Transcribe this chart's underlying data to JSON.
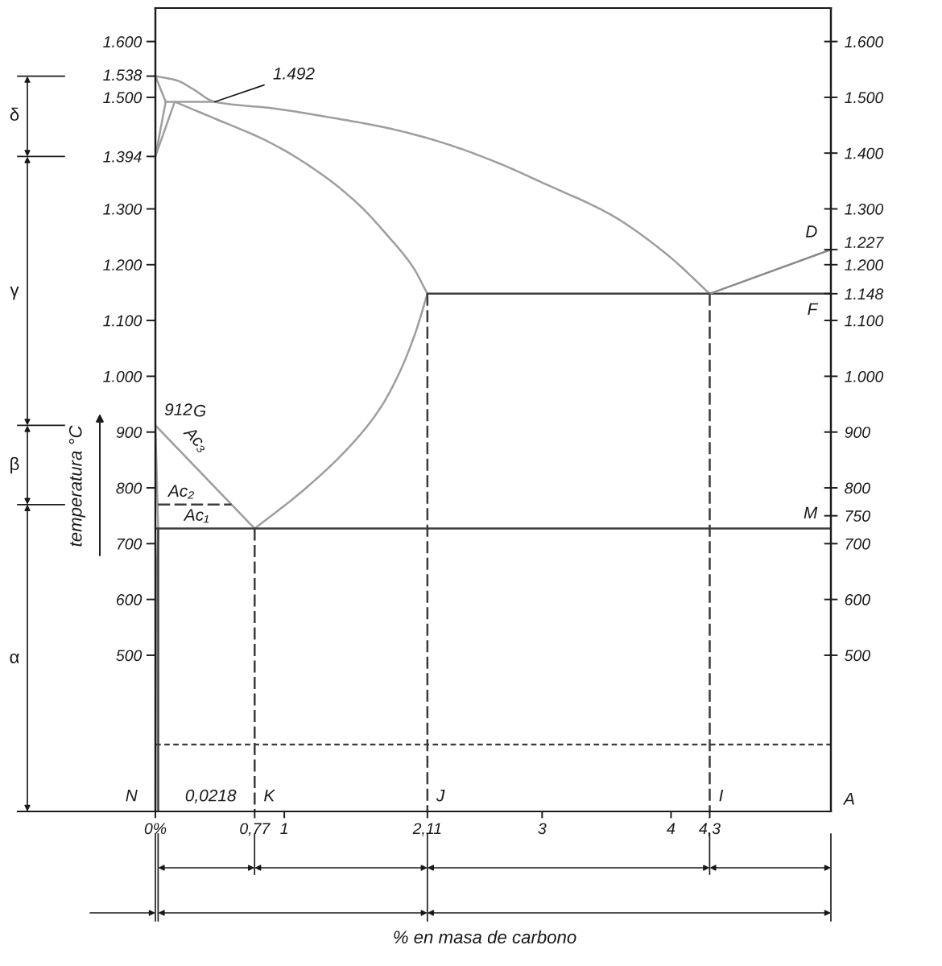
{
  "chart_data": {
    "type": "line",
    "ylabel": "temperatura °C",
    "xlim": [
      0,
      5.24
    ],
    "xticks": [
      {
        "value": 0,
        "label": "0%"
      },
      {
        "value": 0.77,
        "label": "0,77"
      },
      1,
      {
        "value": 2.11,
        "label": "2,11"
      },
      3,
      4,
      {
        "value": 4.3,
        "label": "4,3"
      }
    ],
    "ylim": [
      220,
      1660
    ],
    "yticks": [
      {
        "value": 1600,
        "label": "1.600"
      },
      {
        "value": 1538,
        "label": "1.538"
      },
      {
        "value": 1500,
        "label": "1.500"
      },
      {
        "value": 1394,
        "label": "1.394"
      },
      {
        "value": 1300,
        "label": "1.300"
      },
      {
        "value": 1200,
        "label": "1.200"
      },
      {
        "value": 1100,
        "label": "1.100"
      },
      {
        "value": 1000,
        "label": "1.000"
      },
      900,
      800,
      700,
      600,
      500
    ],
    "y2lim": [
      220,
      1660
    ],
    "y2ticks": [
      {
        "value": 1600,
        "label": "1.600"
      },
      {
        "value": 1500,
        "label": "1.500"
      },
      {
        "value": 1400,
        "label": "1.400"
      },
      {
        "value": 1300,
        "label": "1.300"
      },
      {
        "value": 1227,
        "label": "1.227"
      },
      {
        "value": 1200,
        "label": "1.200"
      },
      {
        "value": 1148,
        "label": "1.148"
      },
      {
        "value": 1100,
        "label": "1.100"
      },
      {
        "value": 1000,
        "label": "1.000"
      },
      900,
      800,
      750,
      700,
      600,
      500
    ],
    "series": [
      {
        "color": "#9e9e9e",
        "x": [
          0,
          0.17,
          0.29,
          0.46,
          0.92,
          1.38,
          1.8,
          2.21,
          2.63,
          3.04,
          3.53,
          3.97,
          4.3
        ],
        "values": [
          1538,
          1530,
          1515,
          1492,
          1480,
          1463,
          1445,
          1420,
          1385,
          1343,
          1290,
          1218,
          1148
        ]
      },
      {
        "color": "#9e9e9e",
        "x": [
          0,
          0.08
        ],
        "values": [
          1538,
          1492
        ]
      },
      {
        "color": "#9e9e9e",
        "x": [
          0.08,
          0
        ],
        "values": [
          1492,
          1394
        ]
      },
      {
        "color": "#9e9e9e",
        "x": [
          0.15,
          0
        ],
        "values": [
          1492,
          1394
        ]
      },
      {
        "color": "#9e9e9e",
        "x": [
          0.08,
          0.46
        ],
        "values": [
          1492,
          1492
        ]
      },
      {
        "color": "#9e9e9e",
        "x": [
          0.15,
          0.46,
          0.88,
          1.29,
          1.59,
          1.79,
          2.0,
          2.11
        ],
        "values": [
          1492,
          1462,
          1420,
          1362,
          1305,
          1255,
          1195,
          1148
        ]
      },
      {
        "color": "#9e9e9e",
        "x": [
          2.11,
          2.02,
          1.9,
          1.75,
          1.55,
          1.17,
          0.77
        ],
        "values": [
          1148,
          1080,
          1010,
          945,
          885,
          800,
          727
        ]
      },
      {
        "color": "#9e9e9e",
        "x": [
          0,
          0.77
        ],
        "values": [
          912,
          727
        ]
      },
      {
        "color": "#9e9e9e",
        "x": [
          0,
          0.0218,
          0.01,
          0.005,
          0
        ],
        "values": [
          912,
          727,
          640,
          520,
          220
        ]
      },
      {
        "color": "#3c3c3c",
        "x": [
          0.0218,
          0.0218
        ],
        "values": [
          727,
          220
        ]
      },
      {
        "color": "#3c3c3c",
        "x": [
          2.11,
          5.24
        ],
        "values": [
          1148,
          1148
        ]
      },
      {
        "color": "#8a8a8a",
        "x": [
          4.3,
          5.24
        ],
        "values": [
          1148,
          1227
        ]
      },
      {
        "color": "#3c3c3c",
        "x": [
          0,
          5.24
        ],
        "values": [
          727,
          727
        ]
      },
      {
        "color": "#3c3c3c",
        "x": [
          0.02,
          0.59
        ],
        "values": [
          770,
          770
        ],
        "line_style": "dashed"
      },
      {
        "color": "#3c3c3c",
        "x": [
          0.77,
          0.77
        ],
        "values": [
          727,
          220
        ],
        "line_style": "dashed"
      },
      {
        "color": "#3c3c3c",
        "x": [
          2.11,
          2.11
        ],
        "values": [
          1148,
          220
        ],
        "line_style": "dashed"
      },
      {
        "color": "#3c3c3c",
        "x": [
          4.3,
          4.3
        ],
        "values": [
          1148,
          220
        ],
        "line_style": "dashed"
      }
    ],
    "ref_lines": [
      {
        "axis": "y",
        "value": 340,
        "line_style": "dashed",
        "color": "#3c3c3c"
      }
    ],
    "annotations": [
      {
        "text": "912",
        "x": 0,
        "y": 912
      },
      {
        "text": "1.492",
        "x": 0.46,
        "y": 1492
      },
      {
        "text": "Ac₃",
        "x": 0.2,
        "y": 864
      },
      {
        "text": "Ac₂",
        "x": 0.2,
        "y": 770
      },
      {
        "text": "Ac₁",
        "x": 0.32,
        "y": 727
      },
      {
        "text": "D",
        "x": 5.24,
        "y": 1227
      },
      {
        "text": "F",
        "x": 5.24,
        "y": 1148
      },
      {
        "text": "M",
        "x": 5.24,
        "y": 727
      },
      {
        "text": "N",
        "x": 0,
        "y": 220
      },
      {
        "text": "0,0218",
        "x": 0.0218,
        "y": 220
      },
      {
        "text": "K",
        "x": 0.77,
        "y": 220
      },
      {
        "text": "J",
        "x": 2.11,
        "y": 220
      },
      {
        "text": "I",
        "x": 4.3,
        "y": 220
      },
      "G",
      "A",
      "δ",
      "γ",
      "β",
      "α",
      "% en masa de carbono"
    ]
  }
}
